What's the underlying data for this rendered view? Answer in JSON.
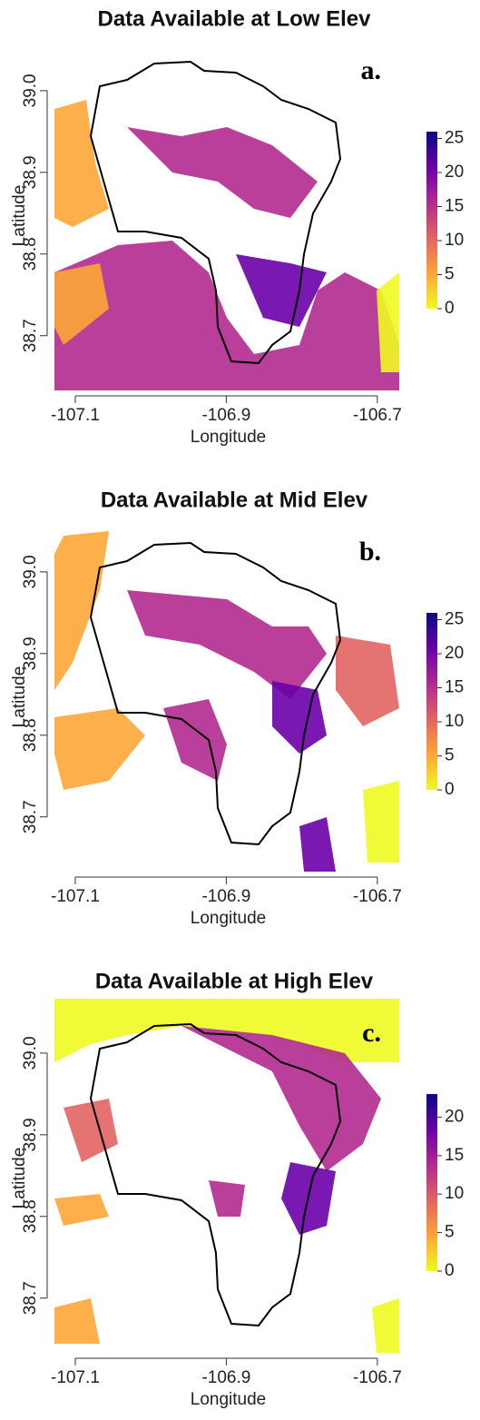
{
  "chart_data": [
    {
      "type": "map",
      "title": "Data Available at Low Elev",
      "panel_label": "a.",
      "xlabel": "Longitude",
      "ylabel": "Latitude",
      "xlim": [
        -107.13,
        -106.665
      ],
      "ylim": [
        38.633,
        39.061
      ],
      "xticks": [
        -107.1,
        -106.9,
        -106.7
      ],
      "yticks": [
        {
          "value": 38.7,
          "label": "38.7"
        },
        {
          "value": 38.8,
          "label": "38.8"
        },
        {
          "value": 38.9,
          "label": "38.9"
        },
        {
          "value": 39,
          "label": "39.0"
        }
      ],
      "colorbar_lim": [
        0,
        26
      ],
      "colorbar_ticks": [
        0,
        5,
        10,
        15,
        20,
        25
      ],
      "colors": [
        "#f0f921",
        "#fca636",
        "#e16462",
        "#b12a90",
        "#6a00a8",
        "#0d0887"
      ]
    },
    {
      "type": "map",
      "title": "Data Available at Mid Elev",
      "panel_label": "b.",
      "xlabel": "Longitude",
      "ylabel": "Latitude",
      "xlim": [
        -107.13,
        -106.665
      ],
      "ylim": [
        38.633,
        39.061
      ],
      "xticks": [
        -107.1,
        -106.9,
        -106.7
      ],
      "yticks": [
        {
          "value": 38.7,
          "label": "38.7"
        },
        {
          "value": 38.8,
          "label": "38.8"
        },
        {
          "value": 38.9,
          "label": "38.9"
        },
        {
          "value": 39,
          "label": "39.0"
        }
      ],
      "colorbar_lim": [
        0,
        26
      ],
      "colorbar_ticks": [
        0,
        5,
        10,
        15,
        20,
        25
      ],
      "colors": [
        "#f0f921",
        "#fca636",
        "#e16462",
        "#b12a90",
        "#6a00a8",
        "#0d0887"
      ]
    },
    {
      "type": "map",
      "title": "Data Available at High Elev",
      "panel_label": "c.",
      "xlabel": "Longitude",
      "ylabel": "Latitude",
      "xlim": [
        -107.13,
        -106.665
      ],
      "ylim": [
        38.633,
        39.061
      ],
      "xticks": [
        -107.1,
        -106.9,
        -106.7
      ],
      "yticks": [
        {
          "value": 38.7,
          "label": "38.7"
        },
        {
          "value": 38.8,
          "label": "38.8"
        },
        {
          "value": 38.9,
          "label": "38.9"
        },
        {
          "value": 39,
          "label": "39.0"
        }
      ],
      "colorbar_lim": [
        0,
        23
      ],
      "colorbar_ticks": [
        0,
        5,
        10,
        15,
        20
      ],
      "colors": [
        "#f0f921",
        "#fca636",
        "#e16462",
        "#b12a90",
        "#6a00a8",
        "#0d0887"
      ]
    }
  ]
}
